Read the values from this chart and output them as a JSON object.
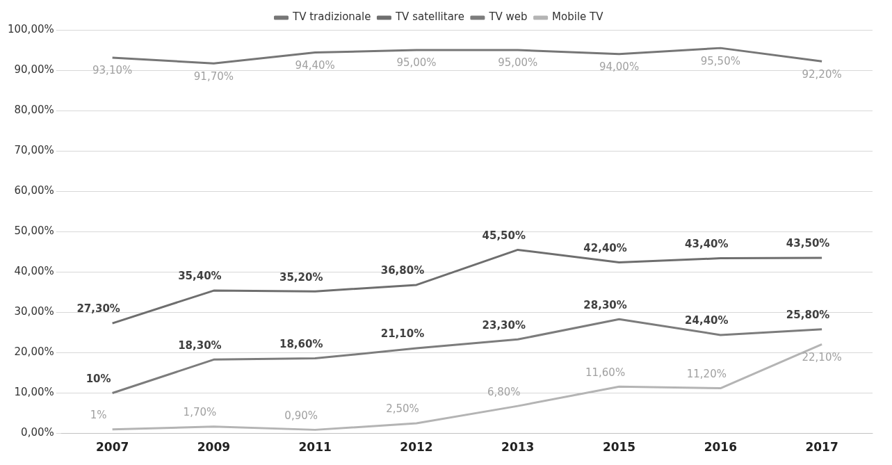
{
  "chart_data": {
    "type": "line",
    "categories": [
      "2007",
      "2009",
      "2011",
      "2012",
      "2013",
      "2015",
      "2016",
      "2017"
    ],
    "series": [
      {
        "name": "TV tradizionale",
        "color": "#767676",
        "values": [
          93.1,
          91.7,
          94.4,
          95.0,
          95.0,
          94.0,
          95.5,
          92.2
        ],
        "value_labels": [
          "93,10%",
          "91,70%",
          "94,40%",
          "95,00%",
          "95,00%",
          "94,00%",
          "95,50%",
          "92,20%"
        ]
      },
      {
        "name": "TV satellitare",
        "color": "#6e6e6e",
        "values": [
          27.3,
          35.4,
          35.2,
          36.8,
          45.5,
          42.4,
          43.4,
          43.5
        ],
        "value_labels": [
          "27,30%",
          "35,40%",
          "35,20%",
          "36,80%",
          "45,50%",
          "42,40%",
          "43,40%",
          "43,50%"
        ]
      },
      {
        "name": "TV web",
        "color": "#7c7c7c",
        "values": [
          10,
          18.3,
          18.6,
          21.1,
          23.3,
          28.3,
          24.4,
          25.8
        ],
        "value_labels": [
          "10%",
          "18,30%",
          "18,60%",
          "21,10%",
          "23,30%",
          "28,30%",
          "24,40%",
          "25,80%"
        ]
      },
      {
        "name": "Mobile TV",
        "color": "#b4b4b4",
        "values": [
          1,
          1.7,
          0.9,
          2.5,
          6.8,
          11.6,
          11.2,
          22.1
        ],
        "value_labels": [
          "1%",
          "1,70%",
          "0,90%",
          "2,50%",
          "6,80%",
          "11,60%",
          "11,20%",
          "22,10%"
        ]
      }
    ],
    "ylim": [
      0,
      100
    ],
    "yticks": [
      {
        "value": 0,
        "label": "0,00%"
      },
      {
        "value": 10,
        "label": "10,00%"
      },
      {
        "value": 20,
        "label": "20,00%"
      },
      {
        "value": 30,
        "label": "30,00%"
      },
      {
        "value": 40,
        "label": "40,00%"
      },
      {
        "value": 50,
        "label": "50,00%"
      },
      {
        "value": 60,
        "label": "60,00%"
      },
      {
        "value": 70,
        "label": "70,00%"
      },
      {
        "value": 80,
        "label": "80,00%"
      },
      {
        "value": 90,
        "label": "90,00%"
      },
      {
        "value": 100,
        "label": "100,00%"
      }
    ],
    "grid": "y",
    "legend": "top",
    "marker": "none",
    "line_style": "solid"
  }
}
